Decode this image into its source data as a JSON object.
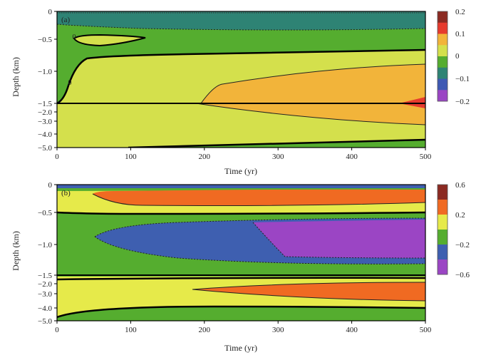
{
  "chart_data": [
    {
      "type": "heatmap",
      "panel_label": "(a)",
      "xlabel": "Time (yr)",
      "ylabel": "Depth (km)",
      "xlim": [
        0,
        500
      ],
      "x_ticks": [
        "0",
        "100",
        "200",
        "300",
        "400",
        "500"
      ],
      "y_ticks": [
        "0",
        "−0.5",
        "−1.0",
        "−1.5",
        "−2.0",
        "−3.0",
        "−4.0",
        "−5.0"
      ],
      "contour_labels": [
        "0",
        "0"
      ],
      "colorbar": {
        "ticks": [
          "0.2",
          "0.1",
          "0",
          "−0.1",
          "−0.2"
        ],
        "colors": [
          "#8b2a22",
          "#e63b2e",
          "#f2b43a",
          "#d4e04c",
          "#55ad2f",
          "#2e8374",
          "#3e59b3",
          "#9b45c4"
        ]
      }
    },
    {
      "type": "heatmap",
      "panel_label": "(b)",
      "xlabel": "Time (yr)",
      "ylabel": "Depth (km)",
      "xlim": [
        0,
        500
      ],
      "x_ticks": [
        "0",
        "100",
        "200",
        "300",
        "400",
        "500"
      ],
      "y_ticks": [
        "0",
        "−0.5",
        "−1.0",
        "−1.5",
        "−2.0",
        "−3.0",
        "−4.0",
        "−5.0"
      ],
      "colorbar": {
        "ticks": [
          "0.6",
          "0.2",
          "−0.2",
          "−0.6"
        ],
        "colors": [
          "#8b2a22",
          "#f06a22",
          "#e6ea4a",
          "#55ad2f",
          "#3e5fb0",
          "#9b45c4"
        ]
      }
    }
  ]
}
